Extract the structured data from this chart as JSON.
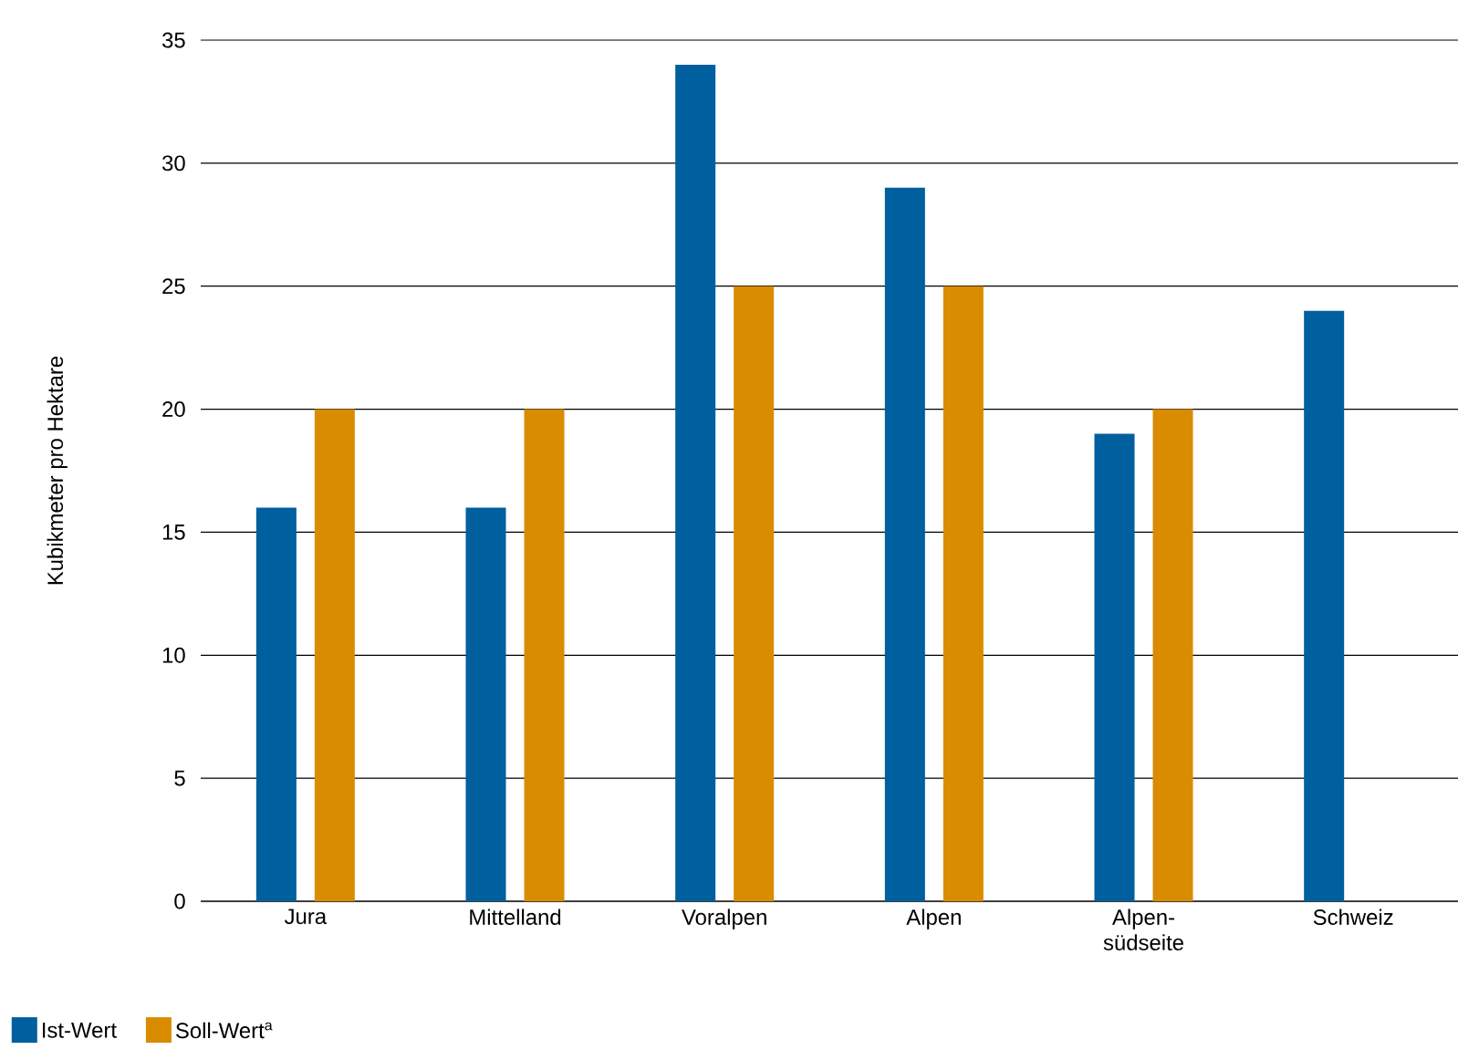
{
  "chart_data": {
    "type": "bar",
    "ylabel": "Kubikmeter pro Hektare",
    "categories": [
      "Jura",
      "Mittelland",
      "Voralpen",
      "Alpen",
      "Alpen-südseite",
      "Schweiz"
    ],
    "series": [
      {
        "name": "Ist-Wert",
        "color": "#005f9e",
        "values": [
          16,
          16,
          34,
          29,
          19,
          24
        ]
      },
      {
        "name": "Soll-Wert$^{a}$",
        "color": "#d98c00",
        "values": [
          20,
          20,
          25,
          25,
          20,
          null
        ]
      }
    ],
    "ylim": [
      0,
      35
    ],
    "yticks": [
      0,
      5,
      10,
      15,
      20,
      25,
      30,
      35
    ],
    "grid": "y",
    "legend": "bottom left"
  }
}
